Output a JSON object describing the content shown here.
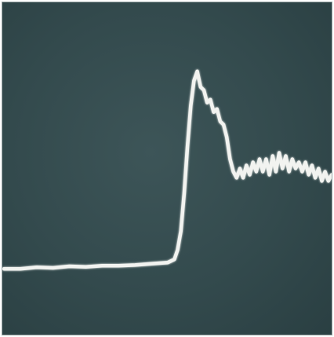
{
  "chart_data": {
    "type": "line",
    "title": "",
    "xlabel": "",
    "ylabel": "",
    "grid": false,
    "legend": "none",
    "xlim": [
      0,
      100
    ],
    "ylim": [
      0,
      100
    ],
    "colors": {
      "background": "#354c4f",
      "trace": "#f2f3f0",
      "border": "#9aa6a6"
    },
    "series": [
      {
        "x": [
          0,
          5,
          10,
          15,
          20,
          25,
          30,
          35,
          40,
          45,
          50,
          52,
          53,
          54,
          55,
          56,
          57,
          58,
          59,
          60,
          61,
          62,
          63,
          64,
          65,
          66,
          67,
          68,
          69,
          70,
          71,
          72,
          73,
          74,
          75,
          76,
          77,
          78,
          79,
          80,
          81,
          82,
          83,
          84,
          85,
          86,
          87,
          88,
          89,
          90,
          91,
          92,
          93,
          94,
          95,
          96,
          97,
          98,
          99,
          100
        ],
        "y": [
          16,
          16,
          16.5,
          16.3,
          16.8,
          16.6,
          17,
          17,
          17.2,
          17.6,
          18,
          19,
          22,
          28,
          40,
          55,
          68,
          76,
          79,
          74,
          73,
          69,
          70,
          66,
          67,
          63,
          62,
          58,
          51,
          47,
          45,
          48,
          45,
          49,
          46,
          50,
          47,
          51,
          47,
          51,
          46,
          52,
          47,
          53,
          48,
          52,
          47,
          51,
          48,
          50,
          47,
          50,
          46,
          49,
          45,
          48,
          44,
          47,
          44,
          46
        ]
      }
    ]
  }
}
